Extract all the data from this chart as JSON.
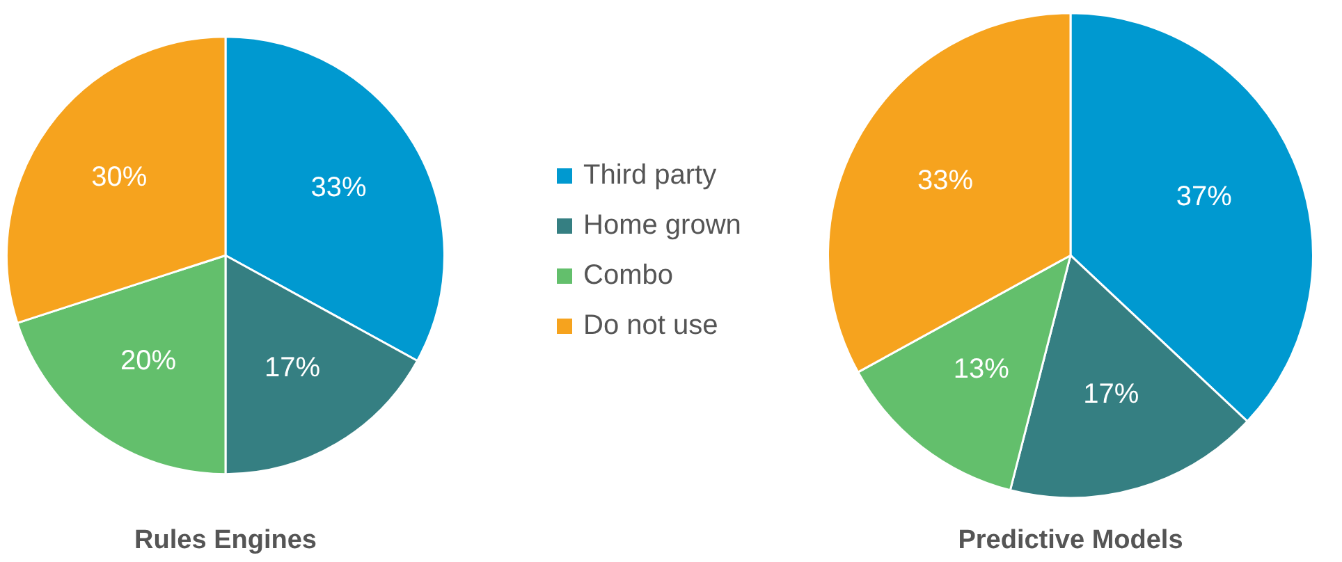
{
  "chart_data": [
    {
      "type": "pie",
      "title": "Rules Engines",
      "categories": [
        "Third party",
        "Home grown",
        "Combo",
        "Do not use"
      ],
      "values": [
        33,
        17,
        20,
        30
      ],
      "colors": [
        "#0099d0",
        "#357f82",
        "#63bf6c",
        "#f6a31e"
      ],
      "value_labels": [
        "33%",
        "17%",
        "20%",
        "30%"
      ],
      "legend": "right"
    },
    {
      "type": "pie",
      "title": "Predictive Models",
      "categories": [
        null,
        null,
        null,
        null
      ],
      "values": [
        37,
        17,
        13,
        33
      ],
      "colors": [
        "#0099d0",
        "#357f82",
        "#63bf6c",
        "#f6a31e"
      ],
      "value_labels": [
        "37%",
        "17%",
        "13%",
        "33%"
      ],
      "legend": false
    }
  ]
}
